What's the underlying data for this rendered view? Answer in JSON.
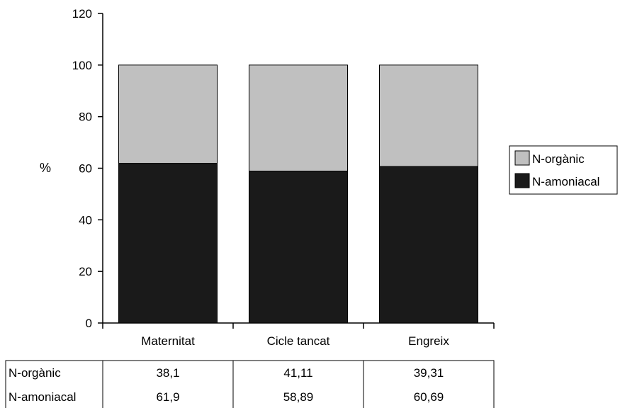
{
  "chart_data": {
    "type": "bar",
    "stacked": true,
    "categories": [
      "Maternitat",
      "Cicle tancat",
      "Engreix"
    ],
    "series": [
      {
        "name": "N-amoniacal",
        "values": [
          61.9,
          58.89,
          60.69
        ],
        "color": "#1a1a1a"
      },
      {
        "name": "N-orgànic",
        "values": [
          38.1,
          41.11,
          39.31
        ],
        "color": "#c0c0c0"
      }
    ],
    "ylabel": "%",
    "ylim": [
      0,
      120
    ],
    "yticks": [
      0,
      20,
      40,
      60,
      80,
      100,
      120
    ],
    "grid": false,
    "legend_position": "right"
  },
  "table": {
    "rows": [
      {
        "label": "N-orgànic",
        "values": [
          "38,1",
          "41,11",
          "39,31"
        ]
      },
      {
        "label": "N-amoniacal",
        "values": [
          "61,9",
          "58,89",
          "60,69"
        ]
      }
    ]
  },
  "legend": {
    "items": [
      {
        "label": "N-orgànic",
        "color": "#c0c0c0"
      },
      {
        "label": "N-amoniacal",
        "color": "#1a1a1a"
      }
    ]
  }
}
